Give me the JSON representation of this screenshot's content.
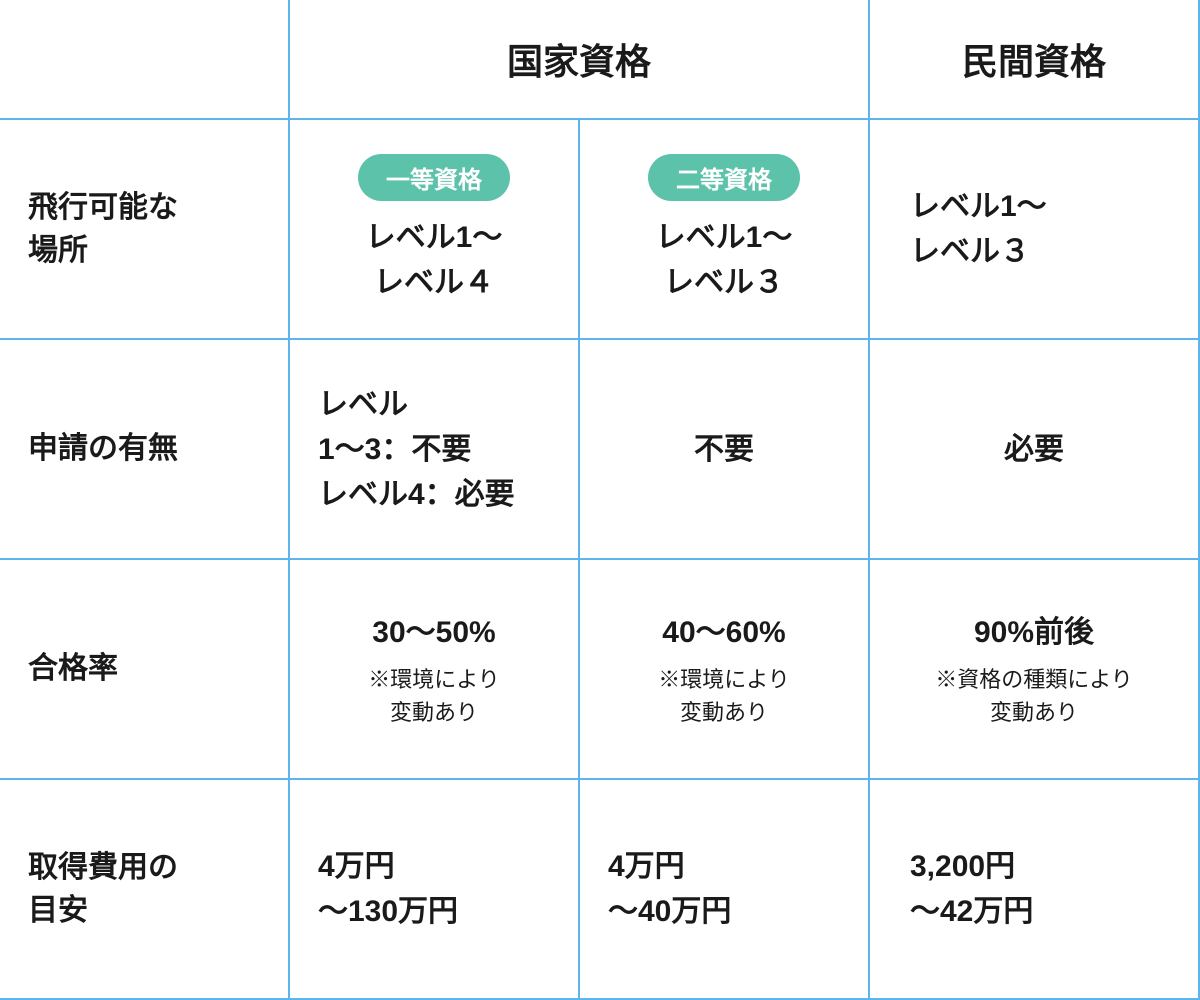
{
  "header": {
    "national": "国家資格",
    "private": "民間資格"
  },
  "pills": {
    "first": "一等資格",
    "second": "二等資格"
  },
  "rows": {
    "flyable": {
      "label": "飛行可能な\n場所",
      "first": "レベル1～\nレベル４",
      "second": "レベル1～\nレベル３",
      "private": "レベル1～\nレベル３"
    },
    "application": {
      "label": "申請の有無",
      "first": "レベル\n1～3：不要\nレベル4：必要",
      "second": "不要",
      "private": "必要"
    },
    "passrate": {
      "label": "合格率",
      "first": "30～50%",
      "first_note": "※環境により\n変動あり",
      "second": "40～60%",
      "second_note": "※環境により\n変動あり",
      "private": "90%前後",
      "private_note": "※資格の種類により\n変動あり"
    },
    "cost": {
      "label": "取得費用の\n目安",
      "first": "4万円\n～130万円",
      "second": "4万円\n～40万円",
      "private": "3,200円\n～42万円"
    }
  },
  "style": {
    "border_color": "#5cb6ed",
    "pill_bg": "#5cc2a9",
    "pill_fg": "#ffffff",
    "text_color": "#1a1a1a",
    "bg": "#ffffff",
    "header_fontsize": 36,
    "rowlabel_fontsize": 30,
    "body_fontsize": 30,
    "note_fontsize": 22,
    "pill_fontsize": 24,
    "cols": [
      290,
      290,
      290,
      330
    ],
    "rows": [
      120,
      220,
      220,
      220,
      220
    ]
  }
}
